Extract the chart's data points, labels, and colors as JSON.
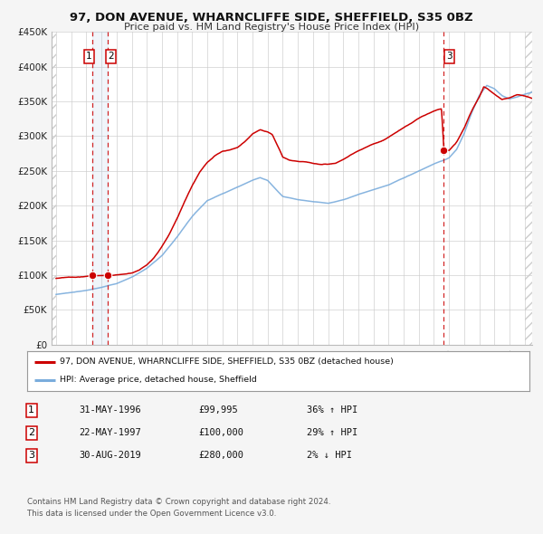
{
  "title1": "97, DON AVENUE, WHARNCLIFFE SIDE, SHEFFIELD, S35 0BZ",
  "title2": "Price paid vs. HM Land Registry's House Price Index (HPI)",
  "ylim": [
    0,
    450000
  ],
  "xlim_start": 1993.7,
  "xlim_end": 2025.5,
  "yticks": [
    0,
    50000,
    100000,
    150000,
    200000,
    250000,
    300000,
    350000,
    400000,
    450000
  ],
  "ytick_labels": [
    "£0",
    "£50K",
    "£100K",
    "£150K",
    "£200K",
    "£250K",
    "£300K",
    "£350K",
    "£400K",
    "£450K"
  ],
  "xticks": [
    1994,
    1995,
    1996,
    1997,
    1998,
    1999,
    2000,
    2001,
    2002,
    2003,
    2004,
    2005,
    2006,
    2007,
    2008,
    2009,
    2010,
    2011,
    2012,
    2013,
    2014,
    2015,
    2016,
    2017,
    2018,
    2019,
    2020,
    2021,
    2022,
    2023,
    2024,
    2025
  ],
  "property_color": "#cc0000",
  "hpi_color": "#7aacdc",
  "dot_color": "#cc0000",
  "vline_color": "#cc0000",
  "sale1_x": 1996.42,
  "sale1_y": 99995,
  "sale2_x": 1997.39,
  "sale2_y": 100000,
  "sale3_x": 2019.66,
  "sale3_y": 280000,
  "legend_property": "97, DON AVENUE, WHARNCLIFFE SIDE, SHEFFIELD, S35 0BZ (detached house)",
  "legend_hpi": "HPI: Average price, detached house, Sheffield",
  "table_row1": [
    "1",
    "31-MAY-1996",
    "£99,995",
    "36% ↑ HPI"
  ],
  "table_row2": [
    "2",
    "22-MAY-1997",
    "£100,000",
    "29% ↑ HPI"
  ],
  "table_row3": [
    "3",
    "30-AUG-2019",
    "£280,000",
    "2% ↓ HPI"
  ],
  "footnote1": "Contains HM Land Registry data © Crown copyright and database right 2024.",
  "footnote2": "This data is licensed under the Open Government Licence v3.0.",
  "bg_color": "#f5f5f5",
  "plot_bg_color": "#ffffff",
  "grid_color": "#cccccc",
  "hatch_color": "#dddddd"
}
